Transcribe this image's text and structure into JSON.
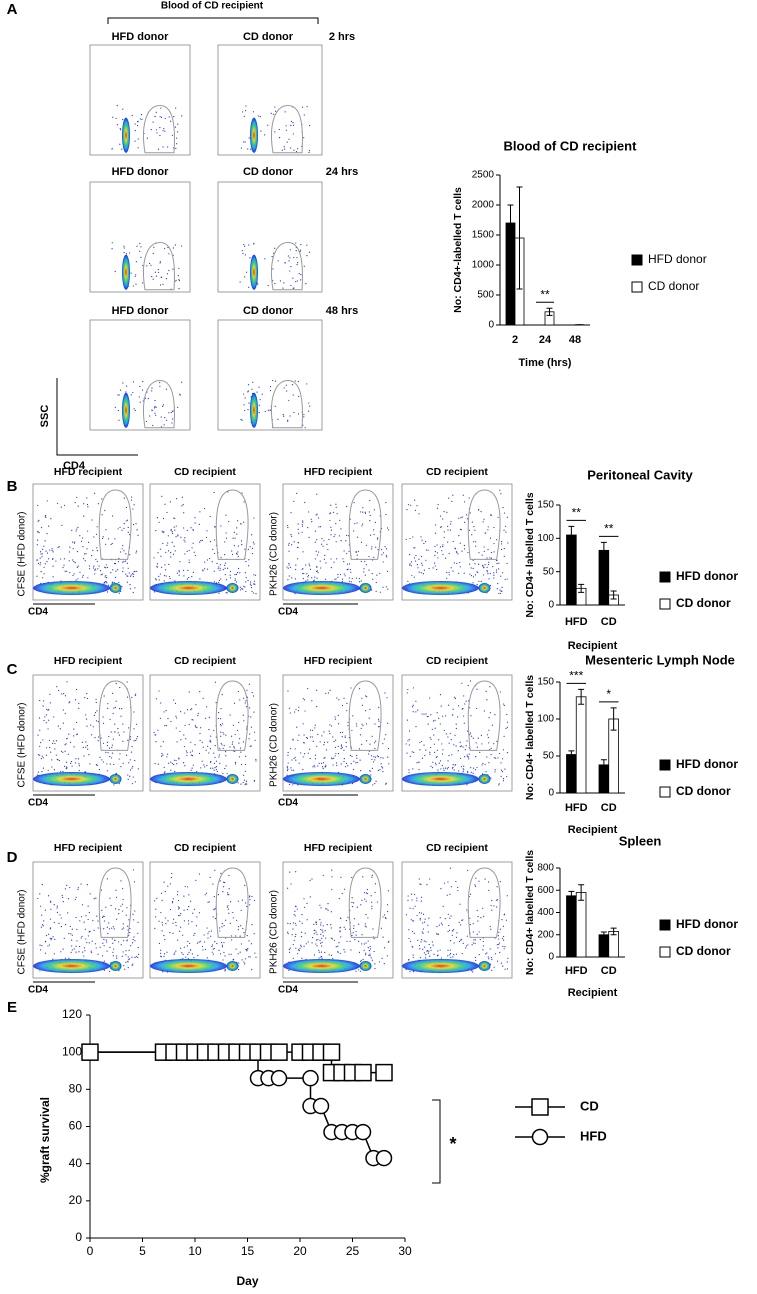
{
  "panel_labels": [
    "A",
    "B",
    "C",
    "D",
    "E"
  ],
  "flow": {
    "a_title": "Blood of CD recipient",
    "a_columns": [
      "HFD donor",
      "CD donor"
    ],
    "a_times": [
      "2 hrs",
      "24 hrs",
      "48 hrs"
    ],
    "a_xlabel": "CD4",
    "a_ylabel": "SSC",
    "recipients": [
      "HFD recipient",
      "CD recipient"
    ],
    "cfse": "CFSE (HFD donor)",
    "pkh": "PKH26 (CD donor)",
    "cd4": "CD4"
  },
  "chart_data": [
    {
      "type": "bar",
      "title": "Blood of CD recipient",
      "categories": [
        "2",
        "24",
        "48"
      ],
      "series": [
        {
          "name": "HFD donor",
          "color": "#000000",
          "values": [
            1700,
            0,
            0
          ],
          "errors": [
            300,
            0,
            0
          ]
        },
        {
          "name": "CD donor",
          "color": "#ffffff",
          "values": [
            1450,
            220,
            5
          ],
          "errors": [
            850,
            60,
            0
          ]
        }
      ],
      "ylim": [
        0,
        2500
      ],
      "yticks": [
        0,
        500,
        1000,
        1500,
        2000,
        2500
      ],
      "annotations": [
        null,
        "**",
        null
      ],
      "xlabel": "Time (hrs)",
      "ylabel": "No: CD4+-labelled T cells"
    },
    {
      "type": "bar",
      "title": "Peritoneal Cavity",
      "categories": [
        "HFD",
        "CD"
      ],
      "series": [
        {
          "name": "HFD donor",
          "color": "#000000",
          "values": [
            105,
            82
          ],
          "errors": [
            13,
            12
          ]
        },
        {
          "name": "CD donor",
          "color": "#ffffff",
          "values": [
            25,
            15
          ],
          "errors": [
            6,
            6
          ]
        }
      ],
      "ylim": [
        0,
        150
      ],
      "yticks": [
        0,
        50,
        100,
        150
      ],
      "annotations": [
        "**",
        "**"
      ],
      "xlabel": "Recipient",
      "ylabel": "No: CD4+ labelled T cells"
    },
    {
      "type": "bar",
      "title": "Mesenteric Lymph Node",
      "categories": [
        "HFD",
        "CD"
      ],
      "series": [
        {
          "name": "HFD donor",
          "color": "#000000",
          "values": [
            52,
            38
          ],
          "errors": [
            5,
            7
          ]
        },
        {
          "name": "CD donor",
          "color": "#ffffff",
          "values": [
            130,
            100
          ],
          "errors": [
            10,
            15
          ]
        }
      ],
      "ylim": [
        0,
        150
      ],
      "yticks": [
        0,
        50,
        100,
        150
      ],
      "annotations": [
        "***",
        "*"
      ],
      "xlabel": "Recipient",
      "ylabel": "No: CD4+ labelled T cells"
    },
    {
      "type": "bar",
      "title": "Spleen",
      "categories": [
        "HFD",
        "CD"
      ],
      "series": [
        {
          "name": "HFD donor",
          "color": "#000000",
          "values": [
            550,
            200
          ],
          "errors": [
            40,
            25
          ]
        },
        {
          "name": "CD donor",
          "color": "#ffffff",
          "values": [
            580,
            230
          ],
          "errors": [
            70,
            30
          ]
        }
      ],
      "ylim": [
        0,
        800
      ],
      "yticks": [
        0,
        200,
        400,
        600,
        800
      ],
      "annotations": [
        null,
        null
      ],
      "xlabel": "Recipient",
      "ylabel": "No: CD4+ labelled T cells"
    },
    {
      "type": "line",
      "xlabel": "Day",
      "ylabel": "%graft survival",
      "annotation": "*",
      "series": [
        {
          "name": "CD",
          "marker": "square",
          "color": "#000000",
          "x": [
            0,
            7,
            8,
            9,
            10,
            11,
            12,
            13,
            14,
            15,
            16,
            17,
            18,
            20,
            21,
            22,
            23,
            23,
            24,
            25,
            26,
            28
          ],
          "values": [
            100,
            100,
            100,
            100,
            100,
            100,
            100,
            100,
            100,
            100,
            100,
            100,
            100,
            100,
            100,
            100,
            100,
            89,
            89,
            89,
            89,
            89
          ]
        },
        {
          "name": "HFD",
          "marker": "circle",
          "color": "#000000",
          "x": [
            0,
            7,
            8,
            9,
            10,
            11,
            12,
            13,
            14,
            15,
            16,
            16,
            17,
            18,
            21,
            21,
            22,
            23,
            24,
            25,
            26,
            27,
            28
          ],
          "values": [
            100,
            100,
            100,
            100,
            100,
            100,
            100,
            100,
            100,
            100,
            100,
            86,
            86,
            86,
            86,
            71,
            71,
            57,
            57,
            57,
            57,
            43,
            43
          ]
        }
      ],
      "xlim": [
        0,
        30
      ],
      "xticks": [
        0,
        5,
        10,
        15,
        20,
        25,
        30
      ],
      "ylim": [
        0,
        120
      ],
      "yticks": [
        0,
        20,
        40,
        60,
        80,
        100,
        120
      ]
    }
  ]
}
